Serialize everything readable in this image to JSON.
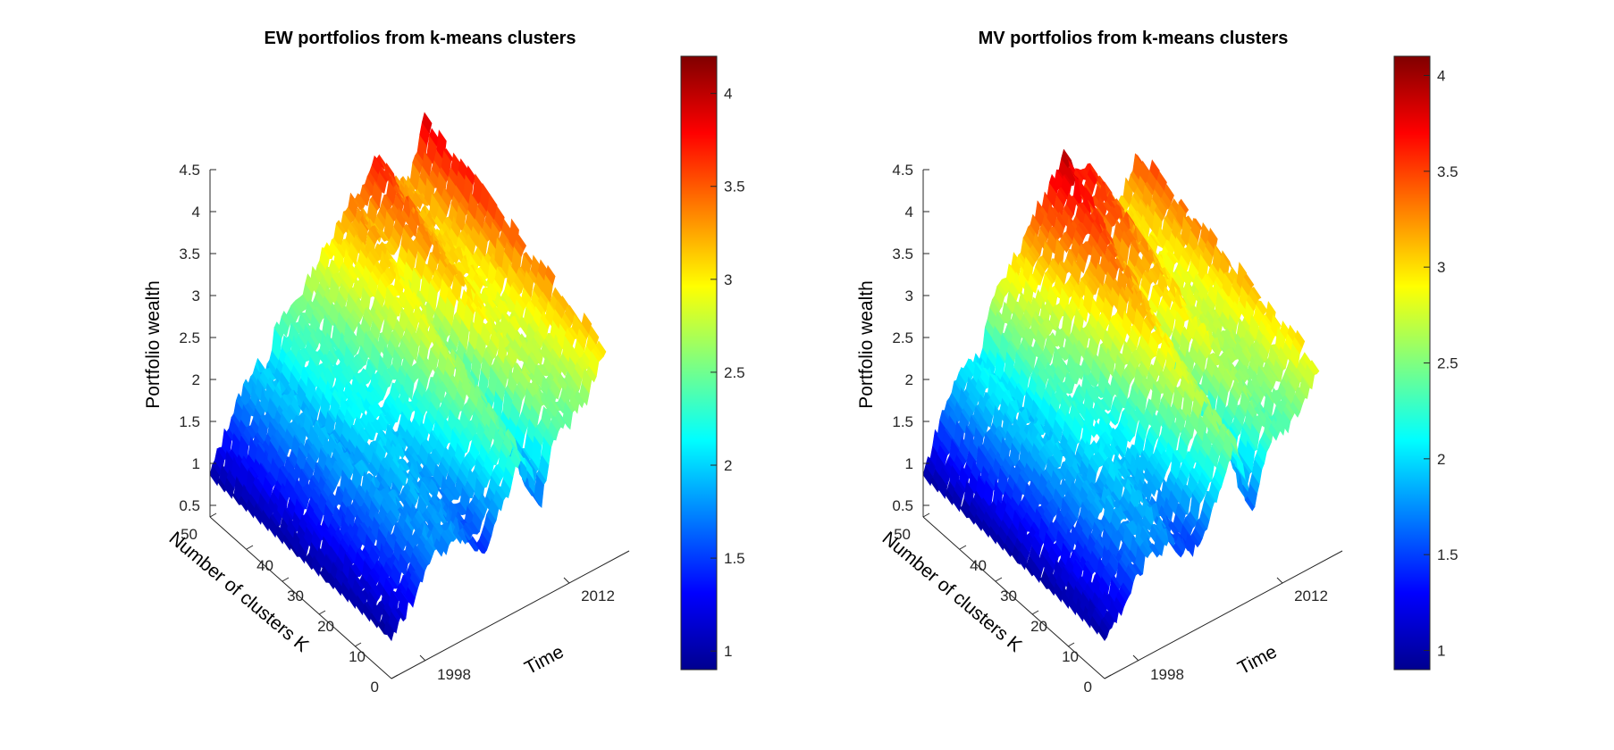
{
  "chart_data": [
    {
      "type": "surface",
      "title": "EW portfolios from k-means clusters",
      "xlabel": "Time",
      "ylabel": "Number of clusters K",
      "zlabel": "Portfolio wealth",
      "x_ticks": [
        "1998",
        "2012"
      ],
      "x_range": [
        1993,
        2016
      ],
      "y_ticks": [
        "0",
        "10",
        "20",
        "30",
        "40",
        "50"
      ],
      "y_range": [
        0,
        50
      ],
      "z_ticks": [
        "0.5",
        "1",
        "1.5",
        "2",
        "2.5",
        "3",
        "3.5",
        "4",
        "4.5"
      ],
      "z_range": [
        0.5,
        4.5
      ],
      "colormap": "jet",
      "colorbar_ticks": [
        "1",
        "1.5",
        "2",
        "2.5",
        "3",
        "3.5",
        "4"
      ],
      "colorbar_range": [
        0.9,
        4.2
      ],
      "grid": false,
      "wealth_path_approx": {
        "time": [
          1993,
          1995,
          1997,
          1998,
          1999,
          2000,
          2001,
          2002,
          2003,
          2005,
          2007,
          2008,
          2009,
          2010,
          2011,
          2012,
          2013,
          2014,
          2015,
          2016
        ],
        "wealth_k_high": [
          1.0,
          1.5,
          1.9,
          2.0,
          1.9,
          2.3,
          2.4,
          2.5,
          2.6,
          2.9,
          3.2,
          3.4,
          3.3,
          3.6,
          3.7,
          3.4,
          3.3,
          3.2,
          3.4,
          3.9
        ],
        "wealth_k_low": [
          1.0,
          1.3,
          1.6,
          1.8,
          1.7,
          1.8,
          1.7,
          1.6,
          1.5,
          1.9,
          2.4,
          2.1,
          1.6,
          2.2,
          2.5,
          2.4,
          2.6,
          2.6,
          2.9,
          3.1
        ]
      }
    },
    {
      "type": "surface",
      "title": "MV portfolios from k-means clusters",
      "xlabel": "Time",
      "ylabel": "Number of clusters K",
      "zlabel": "Portfolio wealth",
      "x_ticks": [
        "1998",
        "2012"
      ],
      "x_range": [
        1993,
        2016
      ],
      "y_ticks": [
        "0",
        "10",
        "20",
        "30",
        "40",
        "50"
      ],
      "y_range": [
        0,
        50
      ],
      "z_ticks": [
        "0.5",
        "1",
        "1.5",
        "2",
        "2.5",
        "3",
        "3.5",
        "4",
        "4.5"
      ],
      "z_range": [
        0.5,
        4.5
      ],
      "colormap": "jet",
      "colorbar_ticks": [
        "1",
        "1.5",
        "2",
        "2.5",
        "3",
        "3.5",
        "4"
      ],
      "colorbar_range": [
        0.9,
        4.1
      ],
      "grid": false,
      "wealth_path_approx": {
        "time": [
          1993,
          1995,
          1997,
          1998,
          1999,
          2000,
          2001,
          2002,
          2003,
          2005,
          2007,
          2008,
          2009,
          2010,
          2011,
          2012,
          2013,
          2014,
          2015,
          2016
        ],
        "wealth_k_high": [
          1.0,
          1.6,
          2.0,
          2.1,
          2.0,
          2.5,
          2.7,
          2.9,
          3.0,
          3.4,
          3.7,
          3.9,
          3.6,
          3.7,
          3.6,
          3.3,
          3.1,
          3.0,
          3.2,
          3.5
        ],
        "wealth_k_low": [
          1.0,
          1.3,
          1.6,
          1.8,
          1.7,
          1.8,
          1.6,
          1.5,
          1.5,
          2.0,
          2.5,
          2.1,
          1.6,
          2.1,
          2.4,
          2.3,
          2.4,
          2.5,
          2.7,
          2.9
        ]
      }
    }
  ]
}
